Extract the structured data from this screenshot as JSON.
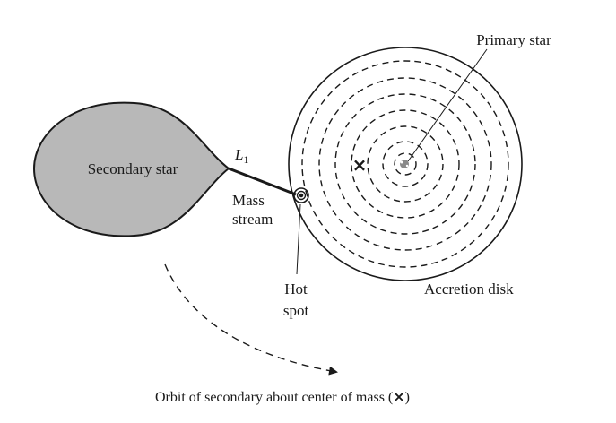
{
  "labels": {
    "primary_star": "Primary star",
    "secondary_star": "Secondary star",
    "l1_letter": "L",
    "l1_sub": "1",
    "mass": "Mass",
    "stream": "stream",
    "hot": "Hot",
    "spot": "spot",
    "accretion_disk": "Accretion disk",
    "orbit_caption": "Orbit of secondary about center of mass (",
    "orbit_caption_mark": "×",
    "orbit_caption_end": ")",
    "com_marker": "×"
  },
  "colors": {
    "secondary_fill": "#b8b8b8",
    "stroke": "#1a1a1a"
  }
}
